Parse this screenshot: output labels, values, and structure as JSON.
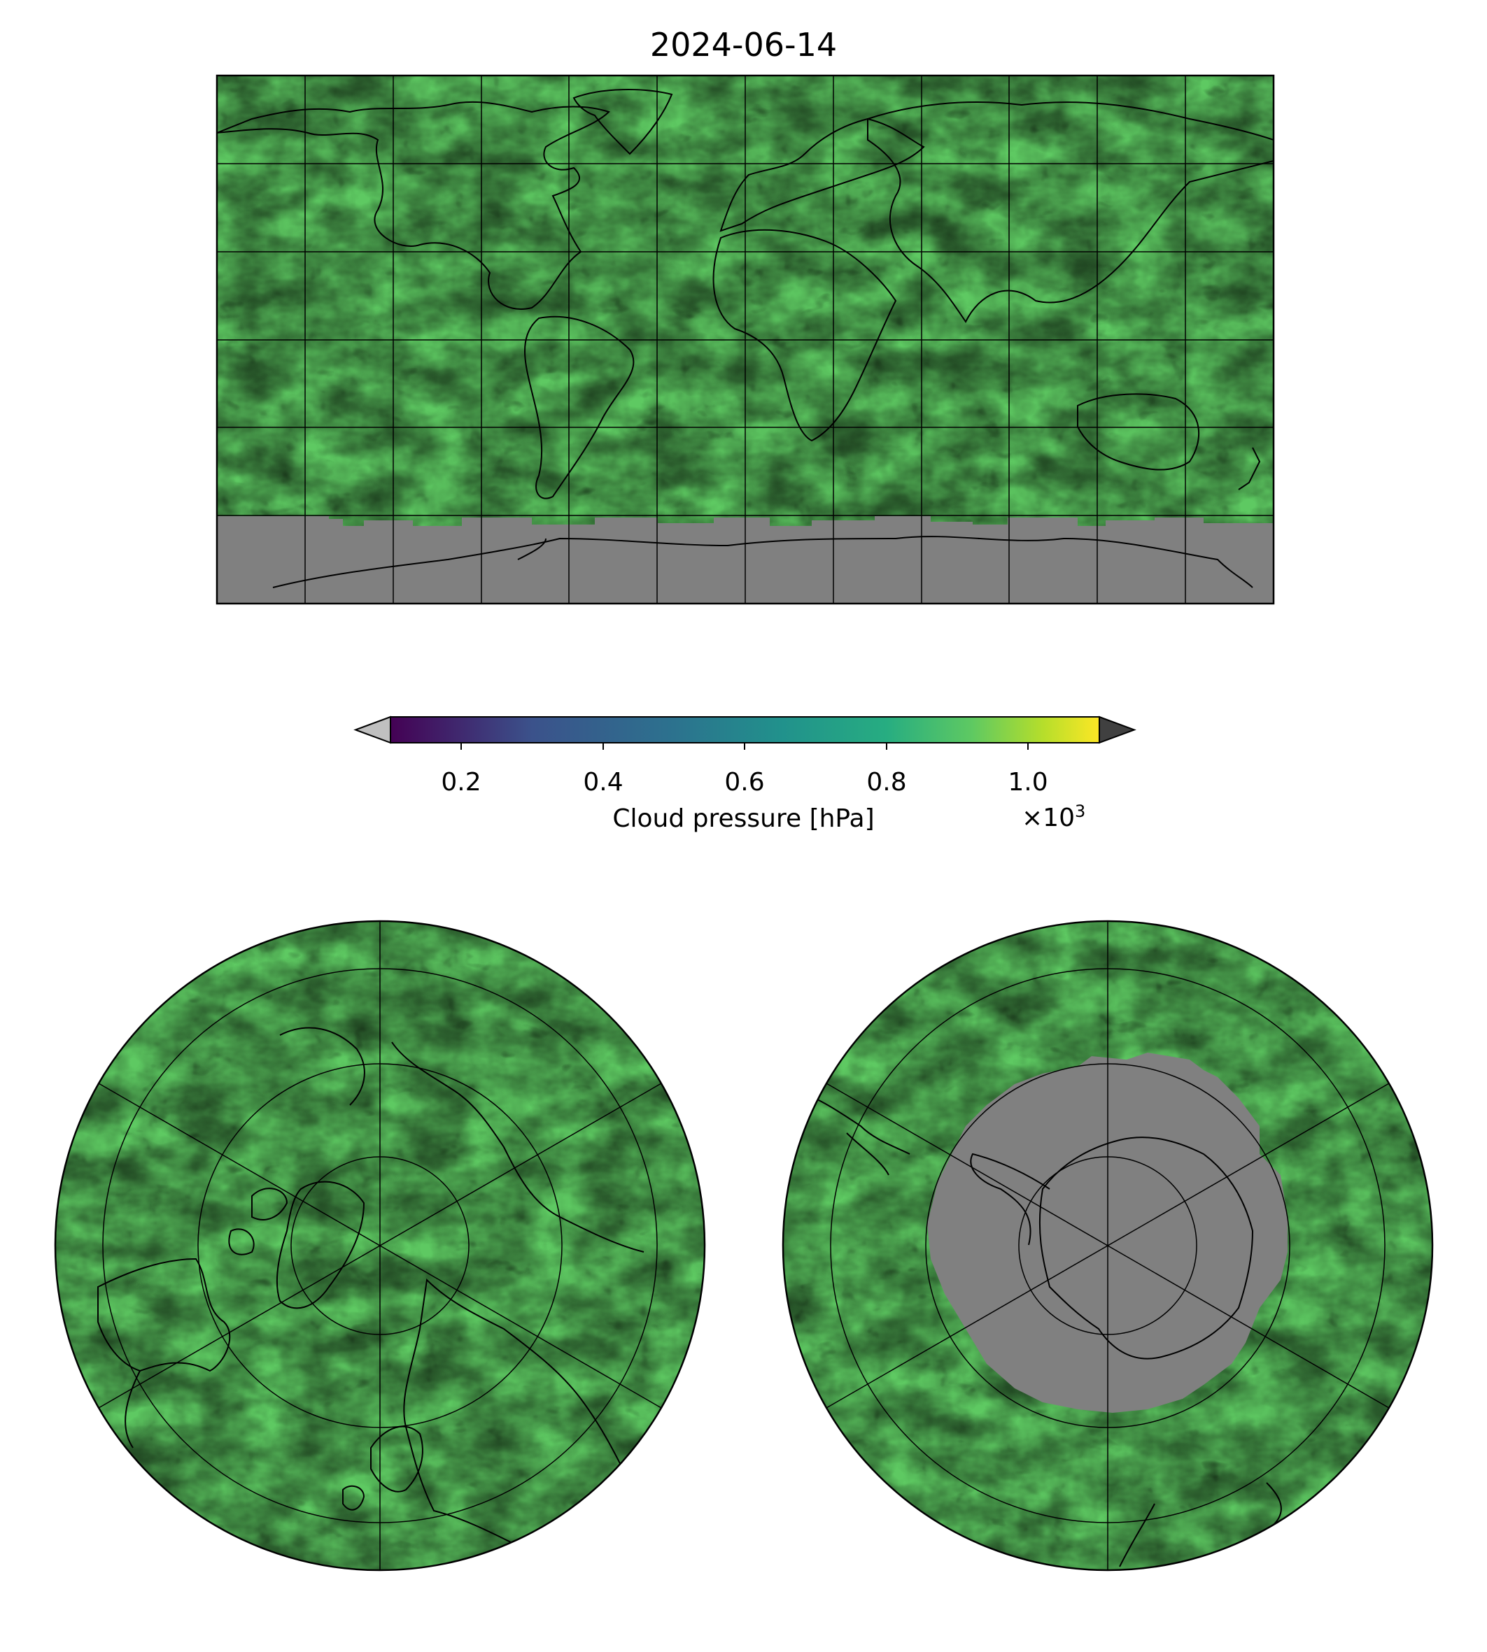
{
  "figure": {
    "title": "2024-06-14",
    "colorbar": {
      "label": "Cloud pressure [hPa]",
      "ticks": [
        "0.2",
        "0.4",
        "0.6",
        "0.8",
        "1.0"
      ],
      "tick_values": [
        0.2,
        0.4,
        0.6,
        0.8,
        1.0
      ],
      "range": [
        0.1,
        1.1
      ],
      "multiplier_base": "×10",
      "multiplier_exp": "3",
      "extend_low_color": "#c0c0c0",
      "extend_high_color": "#404040"
    },
    "colors": {
      "no_data": "#808080",
      "coastline": "#000000",
      "viridis": [
        "#440154",
        "#3b528b",
        "#21918c",
        "#5ec962",
        "#b5de2b",
        "#fde725"
      ]
    }
  },
  "maps": {
    "global": {
      "projection": "PlateCarree",
      "gridlines": "every 30°"
    },
    "north_polar": {
      "projection": "NorthPolarStereo"
    },
    "south_polar": {
      "projection": "SouthPolarStereo"
    }
  }
}
